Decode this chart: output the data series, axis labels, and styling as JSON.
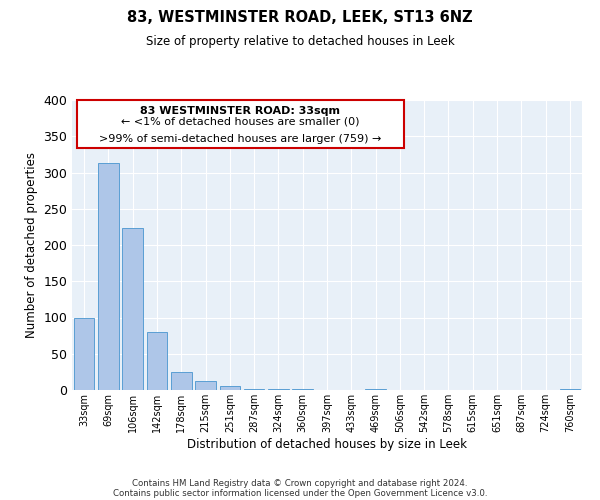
{
  "title": "83, WESTMINSTER ROAD, LEEK, ST13 6NZ",
  "subtitle": "Size of property relative to detached houses in Leek",
  "xlabel": "Distribution of detached houses by size in Leek",
  "ylabel": "Number of detached properties",
  "bin_labels": [
    "33sqm",
    "69sqm",
    "106sqm",
    "142sqm",
    "178sqm",
    "215sqm",
    "251sqm",
    "287sqm",
    "324sqm",
    "360sqm",
    "397sqm",
    "433sqm",
    "469sqm",
    "506sqm",
    "542sqm",
    "578sqm",
    "615sqm",
    "651sqm",
    "687sqm",
    "724sqm",
    "760sqm"
  ],
  "bar_heights": [
    100,
    313,
    224,
    80,
    25,
    13,
    5,
    2,
    2,
    2,
    0,
    0,
    2,
    0,
    0,
    0,
    0,
    0,
    0,
    0,
    2
  ],
  "bar_color": "#aec6e8",
  "bar_edge_color": "#5a9fd4",
  "bg_color": "#e8f0f8",
  "ann_line1": "83 WESTMINSTER ROAD: 33sqm",
  "ann_line2": "← <1% of detached houses are smaller (0)",
  "ann_line3": ">99% of semi-detached houses are larger (759) →",
  "annotation_box_color": "#ffffff",
  "annotation_box_edge_color": "#cc0000",
  "ylim": [
    0,
    400
  ],
  "yticks": [
    0,
    50,
    100,
    150,
    200,
    250,
    300,
    350,
    400
  ],
  "footer_line1": "Contains HM Land Registry data © Crown copyright and database right 2024.",
  "footer_line2": "Contains public sector information licensed under the Open Government Licence v3.0."
}
